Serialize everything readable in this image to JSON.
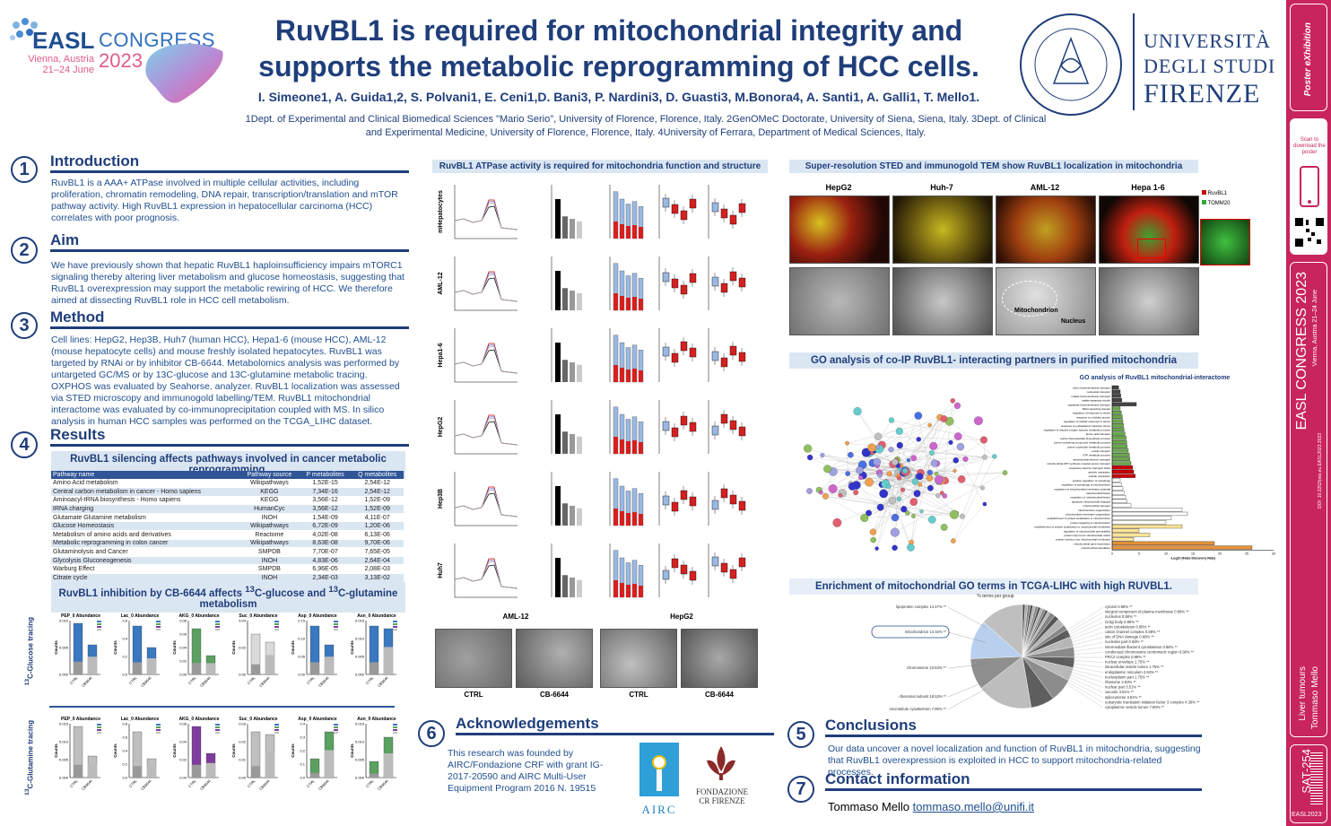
{
  "header": {
    "easl_word": "EASL",
    "congress_word": "CONGRESS",
    "year": "2023",
    "city": "Vienna, Austria",
    "dates": "21–24 June",
    "title_line1": "RuvBL1 is required for mitochondrial integrity and",
    "title_line2": "supports the metabolic reprogramming of HCC cells.",
    "authors": "I. Simeone1, A. Guida1,2, S. Polvani1, E. Ceni1,D. Bani3, P. Nardini3, D. Guasti3, M.Bonora4, A. Santi1, A. Galli1, T. Mello1.",
    "affiliations": "1Dept. of Experimental and Clinical Biomedical Sciences \"Mario Serio\", University of Florence, Florence, Italy. 2GenOMeC Doctorate, University of Siena, Siena, Italy. 3Dept. of Clinical and Experimental Medicine, University of Florence, Florence, Italy. 4University of Ferrara, Department of Medical Sciences, Italy.",
    "university_line1": "UNIVERSITÀ",
    "university_line2": "DEGLI STUDI",
    "university_line3": "FIRENZE"
  },
  "sidebar": {
    "poster_label": "Poster eXhibition",
    "scan_text": "Scan to download the poster",
    "congress": "EASL CONGRESS 2023",
    "congress_sub": "Vienna, Austria 21–24 June",
    "doi": "DOI: 10.3252/pso.eu.EASL2023.2023",
    "topic": "Liver tumours",
    "author": "Tommaso Mello",
    "code": "SAT-254",
    "footer": "EASL2023"
  },
  "sections": {
    "introduction": {
      "num": "1",
      "title": "Introduction",
      "body": "RuvBL1 is a AAA+ ATPase involved in multiple cellular activities, including proliferation, chromatin remodeling, DNA repair, transcription/translation and mTOR pathway activity. High RuvBL1 expression in hepatocellular carcinoma (HCC) correlates with poor prognosis."
    },
    "aim": {
      "num": "2",
      "title": "Aim",
      "body": "We have previously shown that hepatic RuvBL1 haploinsufficiency impairs mTORC1 signaling thereby altering liver metabolism and glucose homeostasis, suggesting that RuvBL1 overexpression may support the metabolic rewiring of HCC. We therefore aimed at dissecting RuvBL1 role in HCC cell metabolism."
    },
    "method": {
      "num": "3",
      "title": "Method",
      "body": "Cell lines:  HepG2, Hep3B, Huh7 (human HCC), Hepa1-6 (mouse HCC), AML-12 (mouse hepatocyte cells) and mouse freshly isolated hepatocytes. RuvBL1 was targeted by RNAi or by inhibitor CB-6644. Metabolomics analysis was performed by untargeted GC/MS or by 13C-glucose and 13C-glutamine metabolic tracing. OXPHOS was evaluated by Seahorse. analyzer. RuvBL1 localization was assessed via STED microscopy and immunogold labelling/TEM. RuvBL1 mitochondrial interactome was evaluated by co-immunoprecipitation coupled with MS. In silico analysis in human HCC samples was performed on the TCGA_LIHC dataset."
    },
    "results": {
      "num": "4",
      "title": "Results"
    },
    "conclusions": {
      "num": "5",
      "title": "Conclusions",
      "body": "Our data uncover a novel localization and function of RuvBL1 in mitochondria, suggesting that RuvBL1 overexpression is exploited in HCC to support mitochondria-related processes."
    },
    "acknowledgements": {
      "num": "6",
      "title": "Acknowledgements",
      "body": "This research was founded by AIRC/Fondazione CRF with grant IG-2017-20590 and AIRC Multi-User Equipment Program 2016 N. 19515",
      "airc": "AIRC",
      "fondazione1": "FONDAZIONE",
      "fondazione2": "CR FIRENZE"
    },
    "contact": {
      "num": "7",
      "title": "Contact information",
      "name": "Tommaso Mello",
      "email": "tommaso.mello@unifi.it"
    }
  },
  "results_panels": {
    "pathways_title": "RuvBL1 silencing affects pathways involved in cancer metabolic reprogramming.",
    "tracing_title": "RuvBL1 inhibition by CB-6644 affects 13C-glucose and 13C-glutamine metabolism",
    "glucose_label": "13C-Glucose tracing",
    "glutamine_label": "13C-Glutamine tracing",
    "atpase_title": "RuvBL1 ATPase activity is required for mitochondria function and structure",
    "sted_title": "Super-resolution STED and immunogold TEM show RuvBL1 localization in mitochondria",
    "go_title": "GO analysis of co-IP RuvBL1- interacting partners in purified mitochondria",
    "go_chart_title": "GO analysis of RuvBL1 mitochondrial-interactome",
    "tcga_title": "Enrichment of mitochondrial GO terms in TCGA-LIHC with high RUVBL1.",
    "sted_cells": [
      "HepG2",
      "Huh-7",
      "AML-12",
      "Hepa 1-6"
    ],
    "sted_legend": [
      "RuvBL1",
      "TOMM20"
    ],
    "tem_labels": [
      "Mitochondrion",
      "Nucleus"
    ],
    "atpase_rows": [
      "mHepatocytes",
      "AML-12",
      "Hepa1-6",
      "HepG2",
      "Hep3B",
      "Huh7"
    ],
    "em_groups": [
      "AML-12",
      "HepG2"
    ],
    "em_conditions": [
      "CTRL",
      "CB-6644",
      "CTRL",
      "CB-6644"
    ]
  },
  "pathway_table": {
    "headers": [
      "Pathway name",
      "Pathway source",
      "P metabolites",
      "Q metabolites"
    ],
    "rows": [
      [
        "Amino Acid metabolism",
        "Wikipathways",
        "1,52E-15",
        "2,54E-12"
      ],
      [
        "Central carbon metabolism in cancer - Homo sapiens",
        "KEGG",
        "7,34E-16",
        "2,54E-12"
      ],
      [
        "Aminoacyl-tRNA biosynthesis - Homo sapiens",
        "KEGG",
        "3,56E-12",
        "1,52E-09"
      ],
      [
        "tRNA charging",
        "HumanCyc",
        "3,56E-12",
        "1,52E-09"
      ],
      [
        "Glutamate Glutamine metabolism",
        "INOH",
        "1,54E-09",
        "4,11E-07"
      ],
      [
        "Glucose Homeostasis",
        "Wikipathways",
        "6,72E-09",
        "1,20E-06"
      ],
      [
        "Metabolism of amino acids and derivatives",
        "Reactome",
        "4,02E-08",
        "6,13E-06"
      ],
      [
        "Metabolic reprogramming in colon cancer",
        "Wikipathways",
        "8,63E-08",
        "9,70E-06"
      ],
      [
        "Glutaminolysis and Cancer",
        "SMPDB",
        "7,70E-07",
        "7,65E-05"
      ],
      [
        "Glycolysis Gluconeogenesis",
        "INOH",
        "4,83E-06",
        "2,64E-04"
      ],
      [
        "Warburg Effect",
        "SMPDB",
        "6,96E-05",
        "2,08E-03"
      ],
      [
        "Citrate cycle",
        "INOH",
        "2,34E-03",
        "3,13E-02"
      ]
    ]
  },
  "tracing_charts": {
    "glucose": [
      {
        "title": "PEP_0 Abundance",
        "yticks": [
          "0.010",
          "0.005",
          "0.000"
        ],
        "ctrl": 0.95,
        "cb": 0.55,
        "ctrl_color": "#3a78c0"
      },
      {
        "title": "Lac_0 Abundance",
        "yticks": [
          "0.6",
          "0.4",
          "0.2",
          "0.0"
        ],
        "ctrl": 0.9,
        "cb": 0.5,
        "ctrl_color": "#3a78c0"
      },
      {
        "title": "AKG_0 Abundance",
        "yticks": [
          "0.08",
          "0.06",
          "0.04",
          "0.02",
          "0.00"
        ],
        "ctrl": 0.85,
        "cb": 0.35,
        "ctrl_color": "#5aa060"
      },
      {
        "title": "Suc_0 Abundance",
        "yticks": [
          "0.04",
          "0.02",
          "0.00"
        ],
        "ctrl": 0.75,
        "cb": 0.6,
        "ctrl_color": "#d9d9d9"
      },
      {
        "title": "Asp_0 Abundance",
        "yticks": [
          "0.15",
          "0.10",
          "0.05",
          "0.00"
        ],
        "ctrl": 0.9,
        "cb": 0.55,
        "ctrl_color": "#3a78c0"
      },
      {
        "title": "Asn_0 Abundance",
        "yticks": [
          "0.015",
          "0.010",
          "0.005",
          "0.000"
        ],
        "ctrl": 0.9,
        "cb": 0.85,
        "ctrl_color": "#3a78c0"
      }
    ],
    "glutamine": [
      {
        "title": "PEP_0 Abundance",
        "yticks": [
          "0.015",
          "0.010",
          "0.005",
          "0.000"
        ],
        "ctrl": 0.95,
        "cb": 0.4,
        "ctrl_color": "#bfbfbf"
      },
      {
        "title": "Lac_0 Abundance",
        "yticks": [
          "0.8",
          "0.6",
          "0.4",
          "0.2",
          "0.0"
        ],
        "ctrl": 0.85,
        "cb": 0.35,
        "ctrl_color": "#bfbfbf"
      },
      {
        "title": "AKG_0 Abundance",
        "yticks": [
          "0.06",
          "0.04",
          "0.02",
          "0.00"
        ],
        "ctrl": 0.95,
        "cb": 0.45,
        "ctrl_color": "#7e3d9e"
      },
      {
        "title": "Suc_0 Abundance",
        "yticks": [
          "0.03",
          "0.02",
          "0.01",
          "0.00"
        ],
        "ctrl": 0.85,
        "cb": 0.8,
        "ctrl_color": "#bfbfbf"
      },
      {
        "title": "Asp_0 Abundance",
        "yticks": [
          "0.4",
          "0.3",
          "0.2",
          "0.1",
          "0.0"
        ],
        "ctrl": 0.35,
        "cb": 0.85,
        "ctrl_color": "#5aa060"
      },
      {
        "title": "Asn_0 Abundance",
        "yticks": [
          "0.015",
          "0.010",
          "0.005",
          "0.000"
        ],
        "ctrl": 0.3,
        "cb": 0.75,
        "ctrl_color": "#5aa060"
      }
    ],
    "x_labels": [
      "CTRL",
      "CB6644"
    ],
    "y_label": "Counts"
  },
  "go_bars": {
    "x_label": "-Log10 (False Discovery Rate)",
    "x_ticks": [
      "0",
      "5",
      "10",
      "15",
      "20",
      "25",
      "30"
    ],
    "x_max": 30,
    "terms": [
      "anion transmembrane transport",
      "nucleotide transport",
      "malate transmembrane transport",
      "malate-aspartate shuttle",
      "aspartate transmembrane transport",
      "BH3 interacting domain",
      "regulation of response to stress",
      "response to unfolded protein",
      "regulation of cellular response to stress",
      "response to endoplasmic reticulum stress",
      "regulation of reactive oxygen species metabolic process",
      "amino acid transport",
      "purine ribonucleotide biosynthetic process",
      "purine-containing compound metabolic process",
      "purine nucleotide metabolic process",
      "amide transport",
      "ATP metabolic process",
      "mitochondrial electron transport",
      "mitochondrial ATP synthesis coupled proton transport",
      "respiratory electron transport chain",
      "aerobic respiration",
      "cellular respiration",
      "positive regulation of mitophagy",
      "regulation of autophagy of mitochondrion",
      "regulation of mitochondrial membrane potential",
      "mitochondrial fission",
      "regulation of mitochondrial fission",
      "apoptotic mitochondrial changes",
      "mitochondrial transport",
      "mitochondrion organization",
      "mitochondrial membrane organization",
      "establishment of protein localization to mitochondrion",
      "protein targeting to mitochondrion",
      "establishment of protein localization to mitochondrial membrane",
      "regulation of mitochondrial permeability",
      "protein import into mitochondrial matrix",
      "protein insertion into mitochondrial membrane",
      "mitochondrial gene expression",
      "mitochondrial translation"
    ],
    "values": [
      1.2,
      1.5,
      1.6,
      1.8,
      4.5,
      1.5,
      1.7,
      1.9,
      2.0,
      2.1,
      2.2,
      2.4,
      2.6,
      2.7,
      2.8,
      3.0,
      3.2,
      3.3,
      3.5,
      3.8,
      4.0,
      4.3,
      1.5,
      1.7,
      2.0,
      2.2,
      2.5,
      2.8,
      3.5,
      13,
      14,
      11,
      10,
      13,
      5,
      7,
      4,
      19,
      26
    ],
    "colors": [
      "#444",
      "#444",
      "#444",
      "#444",
      "#444",
      "#6aa84f",
      "#6aa84f",
      "#6aa84f",
      "#6aa84f",
      "#6aa84f",
      "#6aa84f",
      "#6aa84f",
      "#6aa84f",
      "#6aa84f",
      "#6aa84f",
      "#6aa84f",
      "#6aa84f",
      "#6aa84f",
      "#6aa84f",
      "#cc0000",
      "#cc0000",
      "#cc0000",
      "#fff",
      "#fff",
      "#fff",
      "#fff",
      "#fff",
      "#fff",
      "#fff",
      "#fff",
      "#fff",
      "#fff",
      "#fff",
      "#ffe599",
      "#ffe599",
      "#ffe599",
      "#ffe599",
      "#e69138",
      "#e69138"
    ]
  },
  "pie": {
    "caption": "% terms per group",
    "highlight": "mitochondrion 13.16% **",
    "left_labels": [
      "lipoprotein complex 14.47% **",
      "mitochondrion 13.16% **",
      "chromosome 10.53% **",
      "ribosomal subunit 18.53% **",
      "microtubule cytoskeleton 7.89% **"
    ],
    "right_labels": [
      "cytosol 0.88% **",
      "integral component of plasma membrane 0.88% **",
      "nucleolus 0.88% **",
      "Golgi body 0.88% **",
      "actin cytoskeleton 0.88% **",
      "cation channel complex 0.88% **",
      "site of DNA damage 0.88% **",
      "nucleolar part 0.88% **",
      "intermediate filament cytoskeleton 0.88% **",
      "condensed chromosome centromeric region 0.88% **",
      "PRC2 complex 0.88% **",
      "nuclear envelope 1.75% **",
      "intracellular vesicle lumen 1.75% **",
      "endoplasmic reticulum 2.63% **",
      "nucleoplasm part 1.75% **",
      "ribosome 2.63% **",
      "nuclear part 3.51% **",
      "vacuole 3.51% **",
      "spliceosome 3.51% **",
      "eukaryotic translation initiation factor 3 complex 4.39% **",
      "cytoplasmic vesicle lumen 7.89% **"
    ],
    "values": [
      0.88,
      0.88,
      0.88,
      0.88,
      0.88,
      0.88,
      0.88,
      0.88,
      0.88,
      0.88,
      0.88,
      1.75,
      1.75,
      2.63,
      1.75,
      2.63,
      3.51,
      3.51,
      3.51,
      4.39,
      7.89,
      7.89,
      18.53,
      10.53,
      13.16,
      14.47
    ]
  }
}
